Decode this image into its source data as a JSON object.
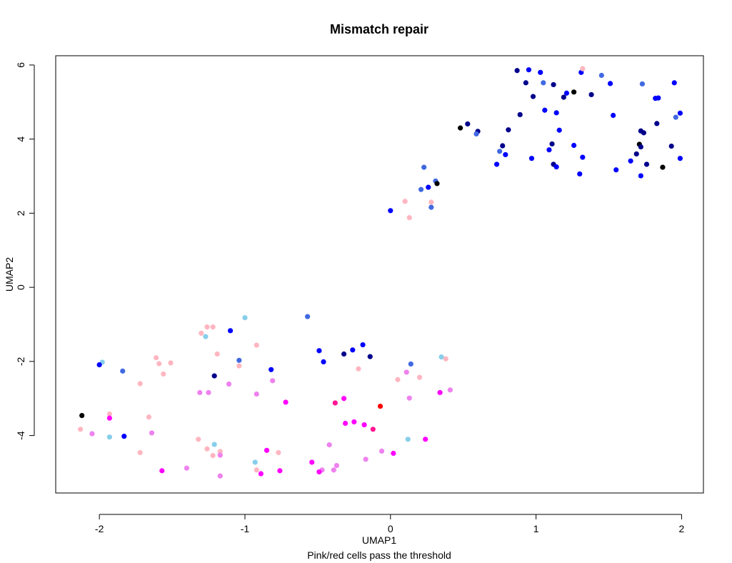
{
  "chart_data": {
    "type": "scatter",
    "title": "Mismatch repair",
    "xlabel": "UMAP1",
    "ylabel": "UMAP2",
    "subtitle": "Pink/red cells pass the threshold",
    "xlim": [
      -2.3,
      2.15
    ],
    "ylim": [
      -5.55,
      6.25
    ],
    "xticks": [
      -2,
      -1,
      0,
      1,
      2
    ],
    "yticks": [
      -4,
      -2,
      0,
      2,
      4,
      6
    ],
    "grid": false,
    "colors": {
      "black": "#000000",
      "navy": "#00008b",
      "blue": "#0000ff",
      "royalblue": "#4169e1",
      "skyblue": "#87ceeb",
      "lightpink": "#ffb6c1",
      "violet": "#ee82ee",
      "magenta": "#ff00ff",
      "deeppink": "#ff1493",
      "red": "#ff0000"
    },
    "points": [
      {
        "x": 0.87,
        "y": 5.85,
        "c": "navy"
      },
      {
        "x": 0.95,
        "y": 5.87,
        "c": "blue"
      },
      {
        "x": 1.03,
        "y": 5.8,
        "c": "blue"
      },
      {
        "x": 1.31,
        "y": 5.8,
        "c": "blue"
      },
      {
        "x": 1.32,
        "y": 5.9,
        "c": "lightpink"
      },
      {
        "x": 1.45,
        "y": 5.72,
        "c": "royalblue"
      },
      {
        "x": 0.93,
        "y": 5.52,
        "c": "navy"
      },
      {
        "x": 1.05,
        "y": 5.52,
        "c": "royalblue"
      },
      {
        "x": 1.12,
        "y": 5.47,
        "c": "navy"
      },
      {
        "x": 1.51,
        "y": 5.5,
        "c": "blue"
      },
      {
        "x": 1.73,
        "y": 5.49,
        "c": "royalblue"
      },
      {
        "x": 1.95,
        "y": 5.52,
        "c": "blue"
      },
      {
        "x": 1.21,
        "y": 5.24,
        "c": "blue"
      },
      {
        "x": 1.26,
        "y": 5.27,
        "c": "black"
      },
      {
        "x": 1.19,
        "y": 5.13,
        "c": "navy"
      },
      {
        "x": 0.98,
        "y": 5.15,
        "c": "navy"
      },
      {
        "x": 1.38,
        "y": 5.2,
        "c": "navy"
      },
      {
        "x": 1.82,
        "y": 5.1,
        "c": "blue"
      },
      {
        "x": 1.84,
        "y": 5.11,
        "c": "blue"
      },
      {
        "x": 1.06,
        "y": 4.78,
        "c": "blue"
      },
      {
        "x": 1.14,
        "y": 4.71,
        "c": "blue"
      },
      {
        "x": 0.89,
        "y": 4.66,
        "c": "navy"
      },
      {
        "x": 1.53,
        "y": 4.64,
        "c": "blue"
      },
      {
        "x": 1.99,
        "y": 4.7,
        "c": "blue"
      },
      {
        "x": 1.96,
        "y": 4.59,
        "c": "royalblue"
      },
      {
        "x": 1.83,
        "y": 4.42,
        "c": "navy"
      },
      {
        "x": 0.48,
        "y": 4.3,
        "c": "black"
      },
      {
        "x": 0.53,
        "y": 4.41,
        "c": "navy"
      },
      {
        "x": 0.6,
        "y": 4.21,
        "c": "navy"
      },
      {
        "x": 0.59,
        "y": 4.14,
        "c": "royalblue"
      },
      {
        "x": 0.81,
        "y": 4.25,
        "c": "navy"
      },
      {
        "x": 1.16,
        "y": 4.24,
        "c": "blue"
      },
      {
        "x": 1.72,
        "y": 4.22,
        "c": "navy"
      },
      {
        "x": 1.74,
        "y": 4.17,
        "c": "navy"
      },
      {
        "x": 1.11,
        "y": 3.87,
        "c": "navy"
      },
      {
        "x": 1.26,
        "y": 3.83,
        "c": "blue"
      },
      {
        "x": 0.77,
        "y": 3.82,
        "c": "navy"
      },
      {
        "x": 1.09,
        "y": 3.71,
        "c": "blue"
      },
      {
        "x": 0.75,
        "y": 3.67,
        "c": "royalblue"
      },
      {
        "x": 1.71,
        "y": 3.86,
        "c": "black"
      },
      {
        "x": 1.72,
        "y": 3.79,
        "c": "navy"
      },
      {
        "x": 1.93,
        "y": 3.81,
        "c": "navy"
      },
      {
        "x": 1.69,
        "y": 3.6,
        "c": "navy"
      },
      {
        "x": 0.79,
        "y": 3.58,
        "c": "blue"
      },
      {
        "x": 0.97,
        "y": 3.48,
        "c": "blue"
      },
      {
        "x": 1.32,
        "y": 3.51,
        "c": "blue"
      },
      {
        "x": 1.65,
        "y": 3.41,
        "c": "blue"
      },
      {
        "x": 1.99,
        "y": 3.48,
        "c": "blue"
      },
      {
        "x": 0.73,
        "y": 3.32,
        "c": "blue"
      },
      {
        "x": 1.12,
        "y": 3.32,
        "c": "navy"
      },
      {
        "x": 1.14,
        "y": 3.25,
        "c": "blue"
      },
      {
        "x": 1.76,
        "y": 3.32,
        "c": "navy"
      },
      {
        "x": 1.87,
        "y": 3.24,
        "c": "black"
      },
      {
        "x": 1.55,
        "y": 3.17,
        "c": "blue"
      },
      {
        "x": 1.3,
        "y": 3.06,
        "c": "blue"
      },
      {
        "x": 1.72,
        "y": 3.01,
        "c": "blue"
      },
      {
        "x": 0.23,
        "y": 3.24,
        "c": "royalblue"
      },
      {
        "x": 0.31,
        "y": 2.87,
        "c": "royalblue"
      },
      {
        "x": 0.32,
        "y": 2.8,
        "c": "black"
      },
      {
        "x": 0.26,
        "y": 2.7,
        "c": "blue"
      },
      {
        "x": 0.21,
        "y": 2.64,
        "c": "royalblue"
      },
      {
        "x": 0.1,
        "y": 2.32,
        "c": "lightpink"
      },
      {
        "x": 0.28,
        "y": 2.3,
        "c": "lightpink"
      },
      {
        "x": 0.28,
        "y": 2.16,
        "c": "royalblue"
      },
      {
        "x": 0.0,
        "y": 2.07,
        "c": "blue"
      },
      {
        "x": 0.13,
        "y": 1.88,
        "c": "lightpink"
      },
      {
        "x": -0.57,
        "y": -0.79,
        "c": "royalblue"
      },
      {
        "x": -1.0,
        "y": -0.82,
        "c": "skyblue"
      },
      {
        "x": -1.26,
        "y": -1.07,
        "c": "lightpink"
      },
      {
        "x": -1.22,
        "y": -1.07,
        "c": "lightpink"
      },
      {
        "x": -1.3,
        "y": -1.24,
        "c": "lightpink"
      },
      {
        "x": -1.27,
        "y": -1.33,
        "c": "skyblue"
      },
      {
        "x": -1.1,
        "y": -1.17,
        "c": "blue"
      },
      {
        "x": -0.92,
        "y": -1.56,
        "c": "lightpink"
      },
      {
        "x": -0.19,
        "y": -1.55,
        "c": "blue"
      },
      {
        "x": -0.26,
        "y": -1.69,
        "c": "blue"
      },
      {
        "x": -0.49,
        "y": -1.71,
        "c": "blue"
      },
      {
        "x": -0.32,
        "y": -1.8,
        "c": "navy"
      },
      {
        "x": -1.19,
        "y": -1.8,
        "c": "lightpink"
      },
      {
        "x": -0.14,
        "y": -1.87,
        "c": "navy"
      },
      {
        "x": -1.61,
        "y": -1.9,
        "c": "lightpink"
      },
      {
        "x": -1.04,
        "y": -1.97,
        "c": "royalblue"
      },
      {
        "x": -0.46,
        "y": -2.01,
        "c": "blue"
      },
      {
        "x": -1.59,
        "y": -2.06,
        "c": "lightpink"
      },
      {
        "x": -1.51,
        "y": -2.04,
        "c": "lightpink"
      },
      {
        "x": -1.98,
        "y": -2.02,
        "c": "skyblue"
      },
      {
        "x": -2.0,
        "y": -2.09,
        "c": "blue"
      },
      {
        "x": -1.04,
        "y": -2.12,
        "c": "lightpink"
      },
      {
        "x": 0.35,
        "y": -1.88,
        "c": "skyblue"
      },
      {
        "x": 0.38,
        "y": -1.93,
        "c": "lightpink"
      },
      {
        "x": 0.14,
        "y": -2.07,
        "c": "royalblue"
      },
      {
        "x": -0.22,
        "y": -2.2,
        "c": "lightpink"
      },
      {
        "x": -0.82,
        "y": -2.22,
        "c": "blue"
      },
      {
        "x": -1.84,
        "y": -2.26,
        "c": "royalblue"
      },
      {
        "x": -1.56,
        "y": -2.34,
        "c": "lightpink"
      },
      {
        "x": 0.11,
        "y": -2.29,
        "c": "violet"
      },
      {
        "x": -1.21,
        "y": -2.39,
        "c": "navy"
      },
      {
        "x": 0.2,
        "y": -2.43,
        "c": "lightpink"
      },
      {
        "x": 0.05,
        "y": -2.49,
        "c": "lightpink"
      },
      {
        "x": -0.81,
        "y": -2.52,
        "c": "violet"
      },
      {
        "x": -1.72,
        "y": -2.6,
        "c": "lightpink"
      },
      {
        "x": -1.11,
        "y": -2.61,
        "c": "violet"
      },
      {
        "x": 0.41,
        "y": -2.77,
        "c": "violet"
      },
      {
        "x": -1.31,
        "y": -2.84,
        "c": "violet"
      },
      {
        "x": -1.25,
        "y": -2.84,
        "c": "violet"
      },
      {
        "x": 0.34,
        "y": -2.84,
        "c": "magenta"
      },
      {
        "x": -0.92,
        "y": -2.88,
        "c": "violet"
      },
      {
        "x": 0.13,
        "y": -2.99,
        "c": "violet"
      },
      {
        "x": -0.32,
        "y": -3.0,
        "c": "magenta"
      },
      {
        "x": -0.72,
        "y": -3.1,
        "c": "magenta"
      },
      {
        "x": -0.38,
        "y": -3.12,
        "c": "deeppink"
      },
      {
        "x": -0.07,
        "y": -3.21,
        "c": "red"
      },
      {
        "x": -2.12,
        "y": -3.46,
        "c": "black"
      },
      {
        "x": -1.93,
        "y": -3.42,
        "c": "lightpink"
      },
      {
        "x": -1.93,
        "y": -3.53,
        "c": "magenta"
      },
      {
        "x": -1.66,
        "y": -3.5,
        "c": "lightpink"
      },
      {
        "x": -0.25,
        "y": -3.63,
        "c": "magenta"
      },
      {
        "x": -0.31,
        "y": -3.67,
        "c": "magenta"
      },
      {
        "x": -0.18,
        "y": -3.71,
        "c": "magenta"
      },
      {
        "x": -0.12,
        "y": -3.83,
        "c": "deeppink"
      },
      {
        "x": -2.13,
        "y": -3.83,
        "c": "lightpink"
      },
      {
        "x": -2.05,
        "y": -3.95,
        "c": "violet"
      },
      {
        "x": -1.64,
        "y": -3.93,
        "c": "violet"
      },
      {
        "x": -1.83,
        "y": -4.02,
        "c": "blue"
      },
      {
        "x": -1.93,
        "y": -4.04,
        "c": "skyblue"
      },
      {
        "x": -1.32,
        "y": -4.1,
        "c": "lightpink"
      },
      {
        "x": 0.12,
        "y": -4.1,
        "c": "skyblue"
      },
      {
        "x": 0.24,
        "y": -4.1,
        "c": "magenta"
      },
      {
        "x": -0.42,
        "y": -4.25,
        "c": "violet"
      },
      {
        "x": -1.21,
        "y": -4.24,
        "c": "skyblue"
      },
      {
        "x": -1.26,
        "y": -4.36,
        "c": "lightpink"
      },
      {
        "x": -0.85,
        "y": -4.4,
        "c": "magenta"
      },
      {
        "x": -1.17,
        "y": -4.43,
        "c": "lightpink"
      },
      {
        "x": -1.72,
        "y": -4.46,
        "c": "lightpink"
      },
      {
        "x": -0.77,
        "y": -4.46,
        "c": "lightpink"
      },
      {
        "x": -0.06,
        "y": -4.42,
        "c": "violet"
      },
      {
        "x": 0.02,
        "y": -4.48,
        "c": "magenta"
      },
      {
        "x": -1.22,
        "y": -4.54,
        "c": "lightpink"
      },
      {
        "x": -1.17,
        "y": -4.53,
        "c": "violet"
      },
      {
        "x": -0.17,
        "y": -4.64,
        "c": "violet"
      },
      {
        "x": -0.93,
        "y": -4.72,
        "c": "skyblue"
      },
      {
        "x": -0.54,
        "y": -4.72,
        "c": "magenta"
      },
      {
        "x": -0.37,
        "y": -4.81,
        "c": "violet"
      },
      {
        "x": -1.4,
        "y": -4.88,
        "c": "violet"
      },
      {
        "x": -0.39,
        "y": -4.93,
        "c": "violet"
      },
      {
        "x": -0.47,
        "y": -4.93,
        "c": "violet"
      },
      {
        "x": -0.49,
        "y": -4.98,
        "c": "magenta"
      },
      {
        "x": -0.92,
        "y": -4.93,
        "c": "lightpink"
      },
      {
        "x": -0.76,
        "y": -4.95,
        "c": "magenta"
      },
      {
        "x": -1.57,
        "y": -4.95,
        "c": "magenta"
      },
      {
        "x": -0.89,
        "y": -5.03,
        "c": "magenta"
      },
      {
        "x": -1.17,
        "y": -5.09,
        "c": "violet"
      }
    ]
  }
}
